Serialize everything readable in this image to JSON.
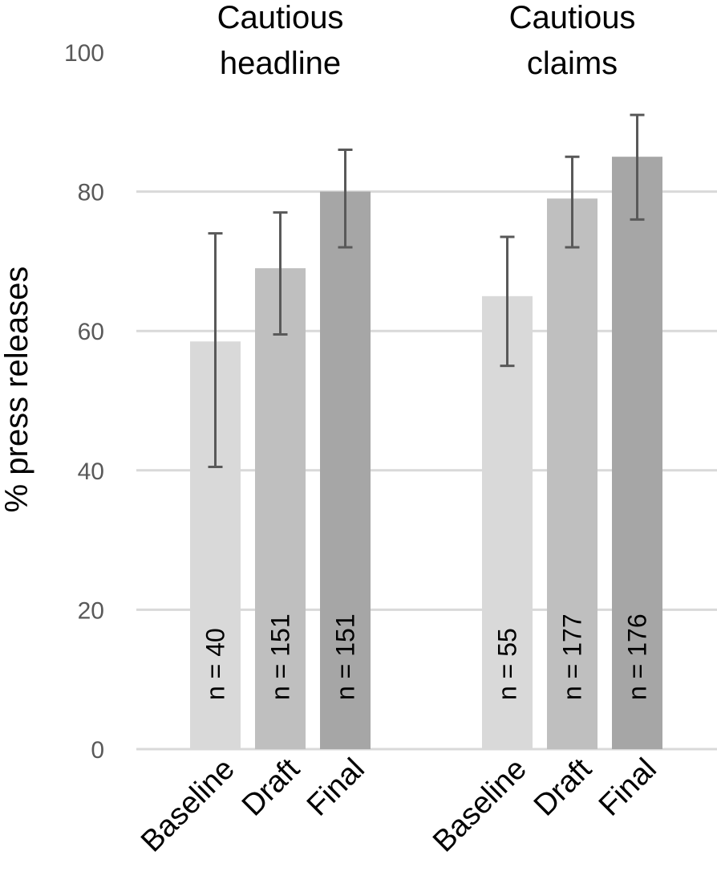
{
  "chart_data": {
    "type": "bar",
    "ylabel": "% press releases",
    "ylim": [
      0,
      100
    ],
    "yticks": [
      0,
      20,
      40,
      60,
      80,
      100
    ],
    "grid": true,
    "groups": [
      {
        "title_lines": [
          "Cautious",
          "headline"
        ],
        "bars": [
          {
            "category": "Baseline",
            "value": 58.5,
            "err_low": 40.5,
            "err_high": 74,
            "n_label": "n = 40",
            "color": "#d9d9d9"
          },
          {
            "category": "Draft",
            "value": 69,
            "err_low": 59.5,
            "err_high": 77,
            "n_label": "n = 151",
            "color": "#bfbfbf"
          },
          {
            "category": "Final",
            "value": 80,
            "err_low": 72,
            "err_high": 86,
            "n_label": "n = 151",
            "color": "#a6a6a6"
          }
        ]
      },
      {
        "title_lines": [
          "Cautious",
          "claims"
        ],
        "bars": [
          {
            "category": "Baseline",
            "value": 65,
            "err_low": 55,
            "err_high": 73.5,
            "n_label": "n = 55",
            "color": "#d9d9d9"
          },
          {
            "category": "Draft",
            "value": 79,
            "err_low": 72,
            "err_high": 85,
            "n_label": "n = 177",
            "color": "#bfbfbf"
          },
          {
            "category": "Final",
            "value": 85,
            "err_low": 76,
            "err_high": 91,
            "n_label": "n = 176",
            "color": "#a6a6a6"
          }
        ]
      }
    ]
  }
}
